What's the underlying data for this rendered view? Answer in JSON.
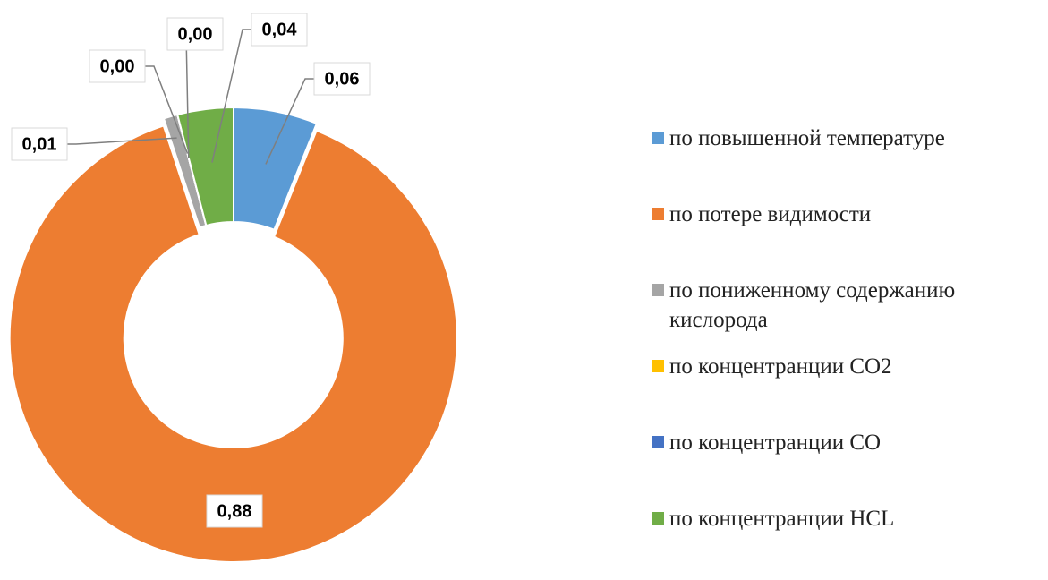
{
  "chart_data": {
    "type": "donut",
    "categories": [
      "по повышенной температуре",
      "по потере видимости",
      "по пониженному содержанию кислорода",
      "по концентранции CO2",
      "по концентранции CO",
      "по концентранции HCL"
    ],
    "values": [
      0.06,
      0.88,
      0.01,
      0.0,
      0.0,
      0.04
    ],
    "value_labels": [
      "0,06",
      "0,88",
      "0,01",
      "0,00",
      "0,00",
      "0,04"
    ],
    "colors": [
      "#5b9bd5",
      "#ed7d31",
      "#a5a5a5",
      "#ffc000",
      "#4472c4",
      "#70ad47"
    ],
    "legend": "right"
  }
}
